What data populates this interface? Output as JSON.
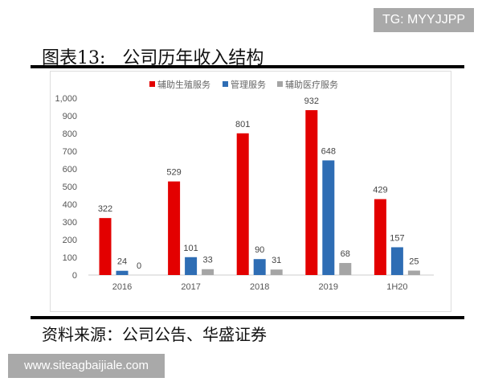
{
  "watermark_top": "TG: MYYJJPP",
  "figure_title": "图表13:   公司历年收入结构",
  "source": "资料来源：公司公告、华盛证券",
  "watermark_bottom": "www.siteagbaijiale.com",
  "chart_data": {
    "type": "bar",
    "categories": [
      "2016",
      "2017",
      "2018",
      "2019",
      "1H20"
    ],
    "series": [
      {
        "name": "辅助生殖服务",
        "color": "#e30000",
        "values": [
          322,
          529,
          801,
          932,
          429
        ]
      },
      {
        "name": "管理服务",
        "color": "#2e6db4",
        "values": [
          24,
          101,
          90,
          648,
          157
        ]
      },
      {
        "name": "辅助医疗服务",
        "color": "#a5a5a5",
        "values": [
          0,
          33,
          31,
          68,
          25
        ]
      }
    ],
    "ylim": [
      0,
      1000
    ],
    "yticks": [
      "0",
      "100",
      "200",
      "300",
      "400",
      "500",
      "600",
      "700",
      "800",
      "900",
      "1,000"
    ],
    "legend": "top",
    "grid": false
  }
}
